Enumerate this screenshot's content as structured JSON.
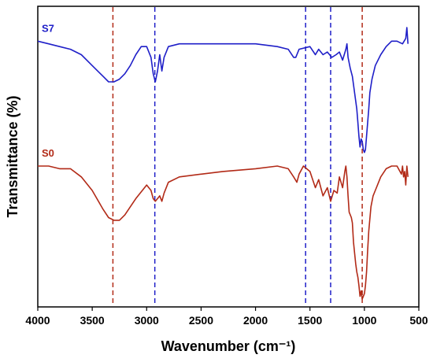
{
  "chart_data": {
    "type": "line",
    "xlabel": "Wavenumber (cm⁻¹)",
    "ylabel": "Transmittance (%)",
    "xlim": [
      4000,
      500
    ],
    "x_reversed": true,
    "x_ticks": [
      4000,
      3500,
      3000,
      2500,
      2000,
      1500,
      1000,
      500
    ],
    "y_tick_labels": false,
    "grid": false,
    "legend": "inline labels top-left",
    "series": [
      {
        "name": "S7",
        "color": "#1f1fc8",
        "points": [
          [
            4000,
            0.85
          ],
          [
            3900,
            0.84
          ],
          [
            3800,
            0.83
          ],
          [
            3700,
            0.82
          ],
          [
            3600,
            0.8
          ],
          [
            3500,
            0.76
          ],
          [
            3400,
            0.72
          ],
          [
            3350,
            0.7
          ],
          [
            3300,
            0.7
          ],
          [
            3250,
            0.71
          ],
          [
            3200,
            0.73
          ],
          [
            3150,
            0.76
          ],
          [
            3100,
            0.8
          ],
          [
            3050,
            0.83
          ],
          [
            3000,
            0.83
          ],
          [
            2960,
            0.79
          ],
          [
            2940,
            0.73
          ],
          [
            2920,
            0.7
          ],
          [
            2900,
            0.74
          ],
          [
            2880,
            0.8
          ],
          [
            2860,
            0.74
          ],
          [
            2840,
            0.79
          ],
          [
            2800,
            0.83
          ],
          [
            2700,
            0.84
          ],
          [
            2500,
            0.84
          ],
          [
            2300,
            0.84
          ],
          [
            2000,
            0.84
          ],
          [
            1800,
            0.83
          ],
          [
            1700,
            0.82
          ],
          [
            1650,
            0.79
          ],
          [
            1630,
            0.79
          ],
          [
            1600,
            0.82
          ],
          [
            1500,
            0.83
          ],
          [
            1450,
            0.8
          ],
          [
            1420,
            0.82
          ],
          [
            1380,
            0.8
          ],
          [
            1340,
            0.81
          ],
          [
            1300,
            0.79
          ],
          [
            1260,
            0.8
          ],
          [
            1230,
            0.81
          ],
          [
            1200,
            0.78
          ],
          [
            1170,
            0.82
          ],
          [
            1160,
            0.84
          ],
          [
            1150,
            0.79
          ],
          [
            1130,
            0.75
          ],
          [
            1110,
            0.72
          ],
          [
            1090,
            0.66
          ],
          [
            1070,
            0.6
          ],
          [
            1060,
            0.55
          ],
          [
            1050,
            0.5
          ],
          [
            1040,
            0.46
          ],
          [
            1030,
            0.49
          ],
          [
            1020,
            0.48
          ],
          [
            1010,
            0.45
          ],
          [
            1000,
            0.44
          ],
          [
            990,
            0.45
          ],
          [
            980,
            0.5
          ],
          [
            970,
            0.55
          ],
          [
            960,
            0.6
          ],
          [
            950,
            0.66
          ],
          [
            930,
            0.71
          ],
          [
            900,
            0.76
          ],
          [
            850,
            0.8
          ],
          [
            800,
            0.83
          ],
          [
            750,
            0.85
          ],
          [
            700,
            0.85
          ],
          [
            650,
            0.84
          ],
          [
            620,
            0.86
          ],
          [
            610,
            0.9
          ],
          [
            600,
            0.84
          ]
        ]
      },
      {
        "name": "S0",
        "color": "#b22a17",
        "points": [
          [
            4000,
            0.39
          ],
          [
            3900,
            0.39
          ],
          [
            3800,
            0.38
          ],
          [
            3700,
            0.38
          ],
          [
            3600,
            0.35
          ],
          [
            3500,
            0.3
          ],
          [
            3400,
            0.23
          ],
          [
            3350,
            0.2
          ],
          [
            3300,
            0.19
          ],
          [
            3250,
            0.19
          ],
          [
            3200,
            0.21
          ],
          [
            3100,
            0.27
          ],
          [
            3000,
            0.32
          ],
          [
            2960,
            0.3
          ],
          [
            2940,
            0.27
          ],
          [
            2920,
            0.26
          ],
          [
            2900,
            0.27
          ],
          [
            2880,
            0.28
          ],
          [
            2860,
            0.26
          ],
          [
            2840,
            0.29
          ],
          [
            2800,
            0.33
          ],
          [
            2700,
            0.35
          ],
          [
            2500,
            0.36
          ],
          [
            2300,
            0.37
          ],
          [
            2000,
            0.38
          ],
          [
            1800,
            0.39
          ],
          [
            1700,
            0.38
          ],
          [
            1650,
            0.35
          ],
          [
            1620,
            0.33
          ],
          [
            1600,
            0.36
          ],
          [
            1560,
            0.39
          ],
          [
            1500,
            0.37
          ],
          [
            1450,
            0.31
          ],
          [
            1420,
            0.34
          ],
          [
            1400,
            0.31
          ],
          [
            1380,
            0.28
          ],
          [
            1340,
            0.31
          ],
          [
            1310,
            0.26
          ],
          [
            1280,
            0.3
          ],
          [
            1250,
            0.29
          ],
          [
            1230,
            0.35
          ],
          [
            1200,
            0.31
          ],
          [
            1180,
            0.37
          ],
          [
            1170,
            0.39
          ],
          [
            1160,
            0.35
          ],
          [
            1150,
            0.28
          ],
          [
            1140,
            0.22
          ],
          [
            1120,
            0.2
          ],
          [
            1110,
            0.18
          ],
          [
            1100,
            0.11
          ],
          [
            1090,
            0.07
          ],
          [
            1080,
            0.03
          ],
          [
            1070,
            0.0
          ],
          [
            1060,
            -0.02
          ],
          [
            1050,
            -0.05
          ],
          [
            1040,
            -0.09
          ],
          [
            1030,
            -0.07
          ],
          [
            1020,
            -0.1
          ],
          [
            1010,
            -0.09
          ],
          [
            1000,
            -0.08
          ],
          [
            990,
            -0.05
          ],
          [
            980,
            0.0
          ],
          [
            970,
            0.08
          ],
          [
            960,
            0.15
          ],
          [
            940,
            0.24
          ],
          [
            920,
            0.28
          ],
          [
            900,
            0.3
          ],
          [
            880,
            0.32
          ],
          [
            850,
            0.35
          ],
          [
            800,
            0.38
          ],
          [
            750,
            0.39
          ],
          [
            700,
            0.39
          ],
          [
            660,
            0.36
          ],
          [
            650,
            0.39
          ],
          [
            640,
            0.35
          ],
          [
            630,
            0.37
          ],
          [
            620,
            0.32
          ],
          [
            610,
            0.39
          ],
          [
            600,
            0.35
          ]
        ]
      }
    ],
    "reference_lines": [
      {
        "x": 3310,
        "color": "#b22a17"
      },
      {
        "x": 2925,
        "color": "#1f1fc8"
      },
      {
        "x": 1540,
        "color": "#1f1fc8"
      },
      {
        "x": 1310,
        "color": "#1f1fc8"
      },
      {
        "x": 1020,
        "color": "#b22a17"
      }
    ]
  }
}
